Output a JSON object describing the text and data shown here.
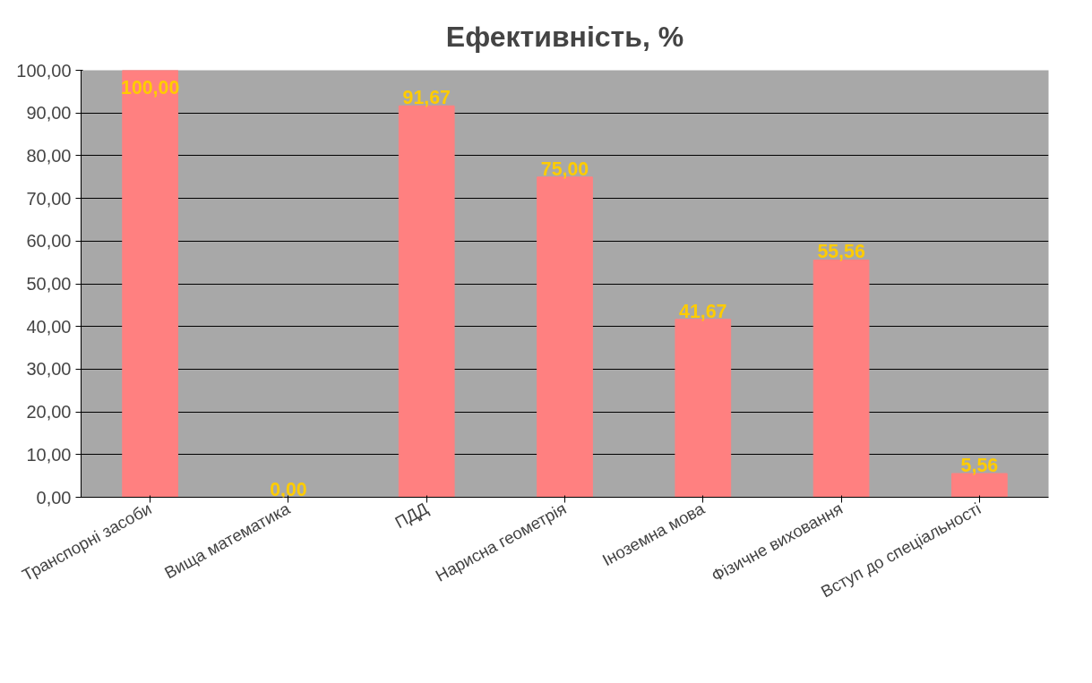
{
  "chart_data": {
    "type": "bar",
    "title": "Ефективність, %",
    "categories": [
      "Транспорні засоби",
      "Вища математика",
      "ПДД",
      "Нарисна геометрія",
      "Іноземна мова",
      "Фізичне виховання",
      "Вступ до спеціальності"
    ],
    "values": [
      100,
      0,
      91.67,
      75,
      41.67,
      55.56,
      5.56
    ],
    "value_labels": [
      "100,00",
      "0,00",
      "91,67",
      "75,00",
      "41,67",
      "55,56",
      "5,56"
    ],
    "color": "#ff8080",
    "ylim": [
      0,
      100
    ],
    "yticks": [
      {
        "value": 0,
        "label": "0,00"
      },
      {
        "value": 10,
        "label": "10,00"
      },
      {
        "value": 20,
        "label": "20,00"
      },
      {
        "value": 30,
        "label": "30,00"
      },
      {
        "value": 40,
        "label": "40,00"
      },
      {
        "value": 50,
        "label": "50,00"
      },
      {
        "value": 60,
        "label": "60,00"
      },
      {
        "value": 70,
        "label": "70,00"
      },
      {
        "value": 80,
        "label": "80,00"
      },
      {
        "value": 90,
        "label": "90,00"
      },
      {
        "value": 100,
        "label": "100,00"
      }
    ],
    "grid": "y"
  }
}
